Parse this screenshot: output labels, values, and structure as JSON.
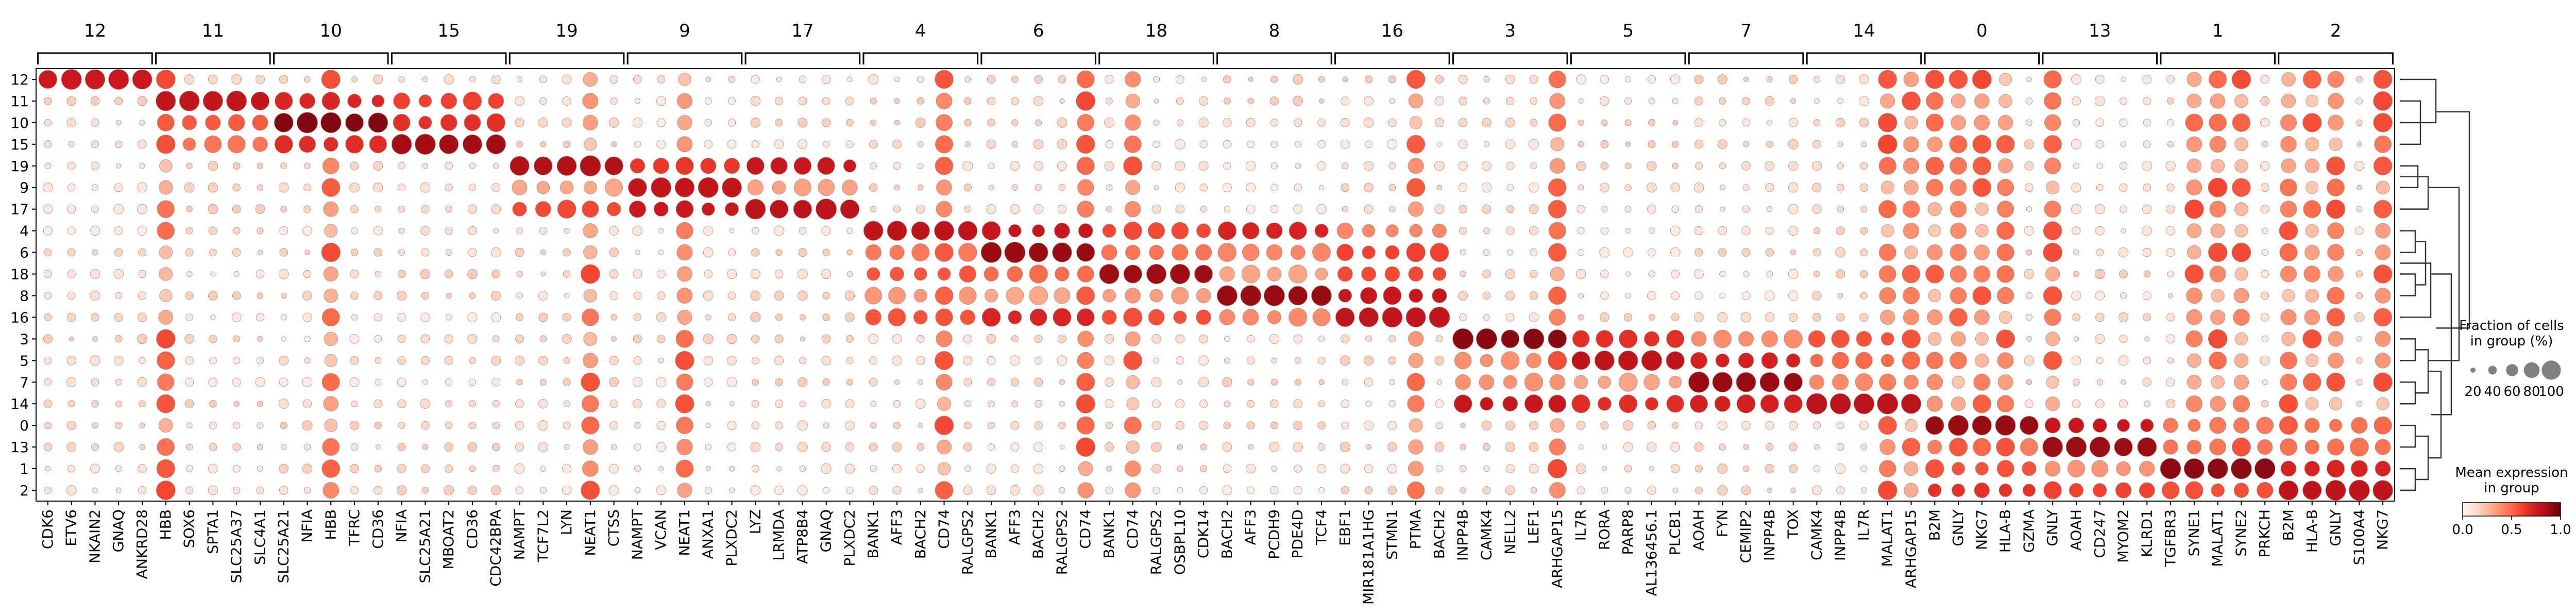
{
  "chart_data": {
    "type": "dotplot",
    "rows": [
      "12",
      "11",
      "10",
      "15",
      "19",
      "9",
      "17",
      "4",
      "6",
      "18",
      "8",
      "16",
      "3",
      "5",
      "7",
      "14",
      "0",
      "13",
      "1",
      "2"
    ],
    "groups": [
      {
        "name": "12",
        "genes": [
          "CDK6",
          "ETV6",
          "NKAIN2",
          "GNAQ",
          "ANKRD28"
        ]
      },
      {
        "name": "11",
        "genes": [
          "HBB",
          "SOX6",
          "SPTA1",
          "SLC25A37",
          "SLC4A1"
        ]
      },
      {
        "name": "10",
        "genes": [
          "SLC25A21",
          "NFIA",
          "HBB",
          "TFRC",
          "CD36"
        ]
      },
      {
        "name": "15",
        "genes": [
          "NFIA",
          "SLC25A21",
          "MBOAT2",
          "CD36",
          "CDC42BPA"
        ]
      },
      {
        "name": "19",
        "genes": [
          "NAMPT",
          "TCF7L2",
          "LYN",
          "NEAT1",
          "CTSS"
        ]
      },
      {
        "name": "9",
        "genes": [
          "NAMPT",
          "VCAN",
          "NEAT1",
          "ANXA1",
          "PLXDC2"
        ]
      },
      {
        "name": "17",
        "genes": [
          "LYZ",
          "LRMDA",
          "ATP8B4",
          "GNAQ",
          "PLXDC2"
        ]
      },
      {
        "name": "4",
        "genes": [
          "BANK1",
          "AFF3",
          "BACH2",
          "CD74",
          "RALGPS2"
        ]
      },
      {
        "name": "6",
        "genes": [
          "BANK1",
          "AFF3",
          "BACH2",
          "RALGPS2",
          "CD74"
        ]
      },
      {
        "name": "18",
        "genes": [
          "BANK1",
          "CD74",
          "RALGPS2",
          "OSBPL10",
          "CDK14"
        ]
      },
      {
        "name": "8",
        "genes": [
          "BACH2",
          "AFF3",
          "PCDH9",
          "PDE4D",
          "TCF4"
        ]
      },
      {
        "name": "16",
        "genes": [
          "EBF1",
          "MIR181A1HG",
          "STMN1",
          "PTMA",
          "BACH2"
        ]
      },
      {
        "name": "3",
        "genes": [
          "INPP4B",
          "CAMK4",
          "NELL2",
          "LEF1",
          "ARHGAP15"
        ]
      },
      {
        "name": "5",
        "genes": [
          "IL7R",
          "RORA",
          "PARP8",
          "AL136456.1",
          "PLCB1"
        ]
      },
      {
        "name": "7",
        "genes": [
          "AOAH",
          "FYN",
          "CEMIP2",
          "INPP4B",
          "TOX"
        ]
      },
      {
        "name": "14",
        "genes": [
          "CAMK4",
          "INPP4B",
          "IL7R",
          "MALAT1",
          "ARHGAP15"
        ]
      },
      {
        "name": "0",
        "genes": [
          "B2M",
          "GNLY",
          "NKG7",
          "HLA-B",
          "GZMA"
        ]
      },
      {
        "name": "13",
        "genes": [
          "GNLY",
          "AOAH",
          "CD247",
          "MYOM2",
          "KLRD1"
        ]
      },
      {
        "name": "1",
        "genes": [
          "TGFBR3",
          "SYNE1",
          "MALAT1",
          "SYNE2",
          "PRKCH"
        ]
      },
      {
        "name": "2",
        "genes": [
          "B2M",
          "HLA-B",
          "GNLY",
          "S100A4",
          "NKG7"
        ]
      }
    ],
    "legend_size_title": "Fraction of cells\nin group (%)",
    "legend_size_ticks": [
      "20",
      "40",
      "60",
      "80",
      "100"
    ],
    "legend_color_title": "Mean expression\nin group",
    "legend_color_ticks": [
      "0.0",
      "0.5",
      "1.0"
    ],
    "colormap": "Reds",
    "expression_range": [
      0,
      1
    ],
    "dendrogram": true,
    "colors": {
      "low": "#fff5f0",
      "mid": "#fb6a4a",
      "high": "#67000d"
    }
  }
}
